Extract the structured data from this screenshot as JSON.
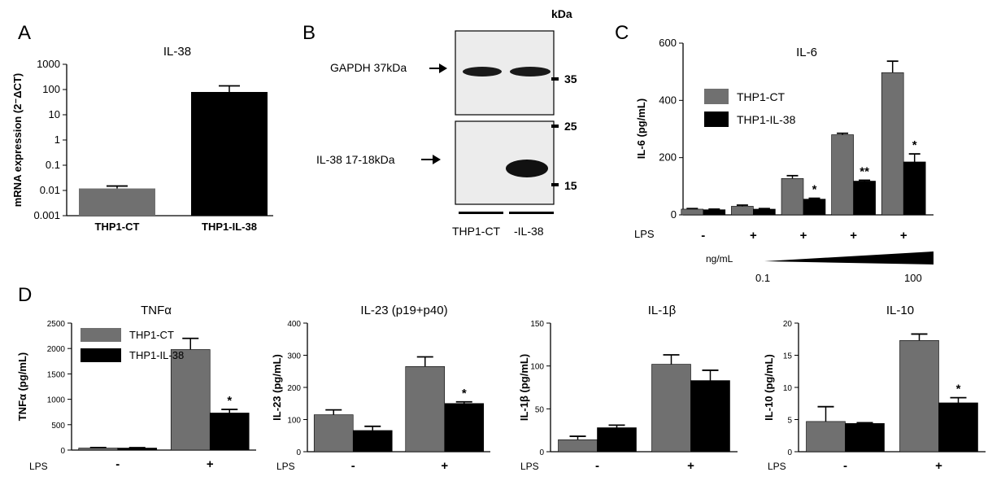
{
  "colors": {
    "ct": "#707070",
    "il38": "#000000"
  },
  "panels": {
    "A": {
      "letter": "A"
    },
    "B": {
      "letter": "B",
      "kda": "kDa",
      "gapdh_label": "GAPDH 37kDa",
      "il38_label": "IL-38 17-18kDa",
      "marker_35": "35",
      "marker_25": "25",
      "marker_15": "15",
      "lane1": "THP1-CT",
      "lane2": "-IL-38"
    },
    "C": {
      "letter": "C",
      "lps_label": "LPS",
      "ngml_label": "ng/mL",
      "dose_low": "0.1",
      "dose_high": "100"
    },
    "D": {
      "letter": "D"
    }
  },
  "chart_data": [
    {
      "id": "A",
      "type": "bar",
      "title": "IL-38",
      "yscale": "log",
      "ylabel": "mRNA expression (2⁻ΔCT)",
      "ylim": [
        0.001,
        1000
      ],
      "yticks": [
        "1000",
        "100",
        "10",
        "1",
        "0.1",
        "0.01",
        "0.001"
      ],
      "categories": [
        "THP1-CT",
        "THP1-IL-38"
      ],
      "series": [
        {
          "values": [
            0.012,
            80
          ],
          "errors": [
            0.003,
            60
          ]
        }
      ]
    },
    {
      "id": "C",
      "type": "bar",
      "title": "IL-6",
      "ylabel": "IL-6 (pg/mL)",
      "ylim": [
        0,
        600
      ],
      "yticks": [
        "0",
        "200",
        "400",
        "600"
      ],
      "categories": [
        "-",
        "+",
        "+",
        "+",
        "+"
      ],
      "xlabel": "LPS",
      "legend": {
        "position": "top-left",
        "entries": [
          "THP1-CT",
          "THP1-IL-38"
        ]
      },
      "series": [
        {
          "name": "THP1-CT",
          "values": [
            20,
            30,
            127,
            280,
            497
          ],
          "errors": [
            2,
            4,
            10,
            5,
            40
          ]
        },
        {
          "name": "THP1-IL-38",
          "values": [
            18,
            20,
            55,
            118,
            185
          ],
          "errors": [
            2,
            2,
            3,
            3,
            28
          ]
        }
      ],
      "annotations": [
        "",
        "",
        "*",
        "**",
        "*"
      ]
    },
    {
      "id": "D1",
      "type": "bar",
      "title": "TNFα",
      "ylabel": "TNFα (pg/mL)",
      "ylim": [
        0,
        2500
      ],
      "yticks": [
        "0",
        "500",
        "1000",
        "1500",
        "2000",
        "2500"
      ],
      "categories": [
        "-",
        "+"
      ],
      "xlabel": "LPS",
      "legend": {
        "position": "top-left",
        "entries": [
          "THP1-CT",
          "THP1-IL-38"
        ]
      },
      "series": [
        {
          "name": "THP1-CT",
          "values": [
            40,
            1980
          ],
          "errors": [
            10,
            220
          ]
        },
        {
          "name": "THP1-IL-38",
          "values": [
            40,
            730
          ],
          "errors": [
            8,
            70
          ]
        }
      ],
      "annotations": [
        "",
        "*"
      ]
    },
    {
      "id": "D2",
      "type": "bar",
      "title": "IL-23 (p19+p40)",
      "ylabel": "IL-23 (pg/mL)",
      "ylim": [
        0,
        400
      ],
      "yticks": [
        "0",
        "100",
        "200",
        "300",
        "400"
      ],
      "categories": [
        "-",
        "+"
      ],
      "xlabel": "LPS",
      "series": [
        {
          "name": "THP1-CT",
          "values": [
            115,
            265
          ],
          "errors": [
            15,
            30
          ]
        },
        {
          "name": "THP1-IL-38",
          "values": [
            66,
            150
          ],
          "errors": [
            13,
            5
          ]
        }
      ],
      "annotations": [
        "",
        "*"
      ]
    },
    {
      "id": "D3",
      "type": "bar",
      "title": "IL-1β",
      "ylabel": "IL-1β (pg/mL)",
      "ylim": [
        0,
        150
      ],
      "yticks": [
        "0",
        "50",
        "100",
        "150"
      ],
      "categories": [
        "-",
        "+"
      ],
      "xlabel": "LPS",
      "series": [
        {
          "name": "THP1-CT",
          "values": [
            14,
            102
          ],
          "errors": [
            4,
            11
          ]
        },
        {
          "name": "THP1-IL-38",
          "values": [
            28,
            83
          ],
          "errors": [
            3,
            12
          ]
        }
      ],
      "annotations": [
        "",
        ""
      ]
    },
    {
      "id": "D4",
      "type": "bar",
      "title": "IL-10",
      "ylabel": "IL-10 (pg/mL)",
      "ylim": [
        0,
        20
      ],
      "yticks": [
        "0",
        "5",
        "10",
        "15",
        "20"
      ],
      "categories": [
        "-",
        "+"
      ],
      "xlabel": "LPS",
      "series": [
        {
          "name": "THP1-CT",
          "values": [
            4.7,
            17.3
          ],
          "errors": [
            2.3,
            1.0
          ]
        },
        {
          "name": "THP1-IL-38",
          "values": [
            4.4,
            7.6
          ],
          "errors": [
            0.1,
            0.8
          ]
        }
      ],
      "annotations": [
        "",
        "*"
      ]
    }
  ]
}
